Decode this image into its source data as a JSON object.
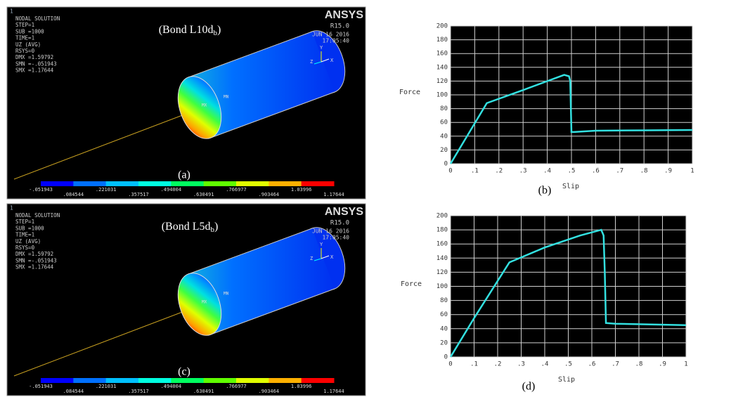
{
  "panels": [
    {
      "window": "1",
      "info": [
        "NODAL SOLUTION",
        "STEP=1",
        "SUB =1000",
        "TIME=1",
        "UZ       (AVG)",
        "RSYS=0",
        "DMX =1.59792",
        "SMN =-.051943",
        "SMX =1.17644"
      ],
      "brand": "ANSYS",
      "version": "R15.0",
      "date": "JUN 16 2016",
      "time": "17:05:40",
      "heading": "(Bond L10d",
      "heading_sub": "b",
      "heading_end": ")",
      "caption": "(a)",
      "min_tag": "MN",
      "max_tag": "MX",
      "axes": [
        "Y",
        "X",
        "Z"
      ],
      "contour_top": [
        "-.051943",
        ".221031",
        ".494004",
        ".766977",
        "1.03996"
      ],
      "contour_bottom": [
        ".084544",
        ".357517",
        ".630491",
        ".903464",
        "1.17644"
      ]
    },
    {
      "window": "1",
      "info": [
        "NODAL SOLUTION",
        "STEP=1",
        "SUB =1000",
        "TIME=1",
        "UZ       (AVG)",
        "RSYS=0",
        "DMX =1.59792",
        "SMN =-.051943",
        "SMX =1.17644"
      ],
      "brand": "ANSYS",
      "version": "R15.0",
      "date": "JUN 16 2016",
      "time": "17:05:40",
      "heading": "(Bond L5d",
      "heading_sub": "b",
      "heading_end": ")",
      "caption": "(c)",
      "min_tag": "MN",
      "max_tag": "MX",
      "axes": [
        "Y",
        "X",
        "Z"
      ],
      "contour_top": [
        "-.051943",
        ".221031",
        ".494004",
        ".766977",
        "1.03996"
      ],
      "contour_bottom": [
        ".084544",
        ".357517",
        ".630491",
        ".903464",
        "1.17644"
      ]
    }
  ],
  "chart_data": [
    {
      "type": "line",
      "caption": "(b)",
      "x_label": "Slip",
      "y_label": "Force",
      "color": "#33e0e0",
      "grid": true,
      "x": [
        0,
        0.15,
        0.3,
        0.47,
        0.49,
        0.495,
        0.5,
        0.51,
        0.6,
        0.8,
        1
      ],
      "values": [
        0,
        88,
        107,
        129,
        127,
        120,
        46,
        46,
        48,
        48.5,
        49
      ],
      "xlim": [
        0,
        1
      ],
      "ylim": [
        0,
        200
      ],
      "xticks": [
        0,
        {
          "value": 0.1,
          "label": ".1"
        },
        {
          "value": 0.2,
          "label": ".2"
        },
        {
          "value": 0.3,
          "label": ".3"
        },
        {
          "value": 0.4,
          "label": ".4"
        },
        {
          "value": 0.5,
          "label": ".5"
        },
        {
          "value": 0.6,
          "label": ".6"
        },
        {
          "value": 0.7,
          "label": ".7"
        },
        {
          "value": 0.8,
          "label": ".8"
        },
        {
          "value": 0.9,
          "label": ".9"
        },
        1
      ],
      "yticks": [
        0,
        20,
        40,
        60,
        80,
        100,
        120,
        140,
        160,
        180,
        200
      ]
    },
    {
      "type": "line",
      "caption": "(d)",
      "x_label": "Slip",
      "y_label": "Force",
      "color": "#33e0e0",
      "grid": true,
      "x": [
        0,
        0.1,
        0.25,
        0.4,
        0.55,
        0.64,
        0.65,
        0.655,
        0.66,
        0.7,
        0.85,
        1
      ],
      "values": [
        0,
        55,
        134,
        155,
        172,
        180,
        172,
        120,
        48,
        47,
        46,
        45
      ],
      "xlim": [
        0,
        1
      ],
      "ylim": [
        0,
        200
      ],
      "xticks": [
        0,
        {
          "value": 0.1,
          "label": ".1"
        },
        {
          "value": 0.2,
          "label": ".2"
        },
        {
          "value": 0.3,
          "label": ".3"
        },
        {
          "value": 0.4,
          "label": ".4"
        },
        {
          "value": 0.5,
          "label": ".5"
        },
        {
          "value": 0.6,
          "label": ".6"
        },
        {
          "value": 0.7,
          "label": ".7"
        },
        {
          "value": 0.8,
          "label": ".8"
        },
        {
          "value": 0.9,
          "label": ".9"
        },
        1
      ],
      "yticks": [
        0,
        20,
        40,
        60,
        80,
        100,
        120,
        140,
        160,
        180,
        200
      ]
    }
  ]
}
